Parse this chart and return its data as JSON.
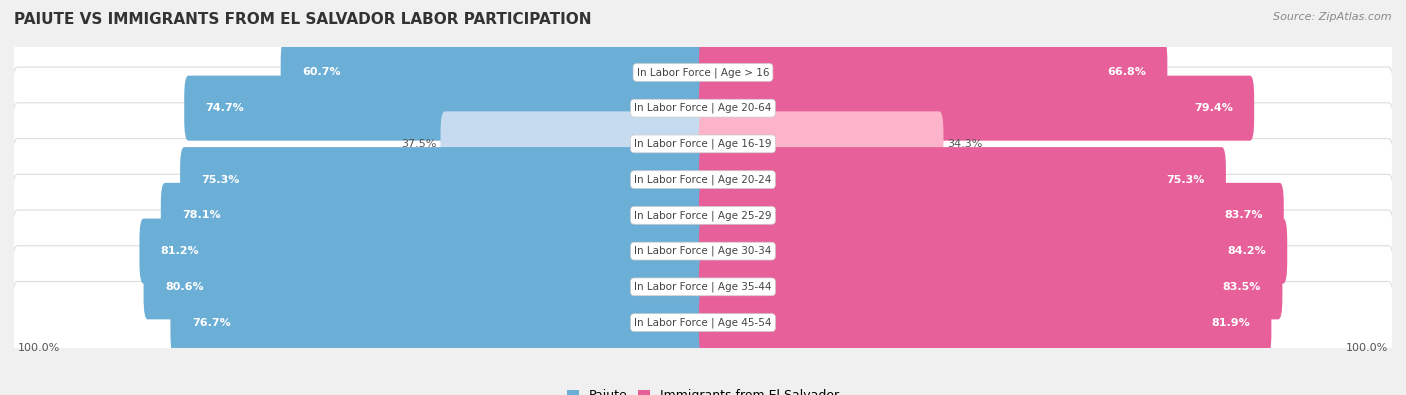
{
  "title": "PAIUTE VS IMMIGRANTS FROM EL SALVADOR LABOR PARTICIPATION",
  "source": "Source: ZipAtlas.com",
  "categories": [
    "In Labor Force | Age > 16",
    "In Labor Force | Age 20-64",
    "In Labor Force | Age 16-19",
    "In Labor Force | Age 20-24",
    "In Labor Force | Age 25-29",
    "In Labor Force | Age 30-34",
    "In Labor Force | Age 35-44",
    "In Labor Force | Age 45-54"
  ],
  "paiute_values": [
    60.7,
    74.7,
    37.5,
    75.3,
    78.1,
    81.2,
    80.6,
    76.7
  ],
  "salvador_values": [
    66.8,
    79.4,
    34.3,
    75.3,
    83.7,
    84.2,
    83.5,
    81.9
  ],
  "paiute_color_strong": "#6baed6",
  "paiute_color_light": "#c6dbef",
  "salvador_color_strong": "#e8609a",
  "salvador_color_light": "#fbb4c9",
  "row_bg_color": "#f0f0f0",
  "row_inner_color": "#ffffff",
  "legend_paiute": "Paiute",
  "legend_salvador": "Immigrants from El Salvador",
  "axis_label": "100.0%",
  "max_value": 100.0,
  "title_fontsize": 11,
  "source_fontsize": 8,
  "bar_label_fontsize": 8,
  "cat_label_fontsize": 7.5,
  "legend_fontsize": 9
}
